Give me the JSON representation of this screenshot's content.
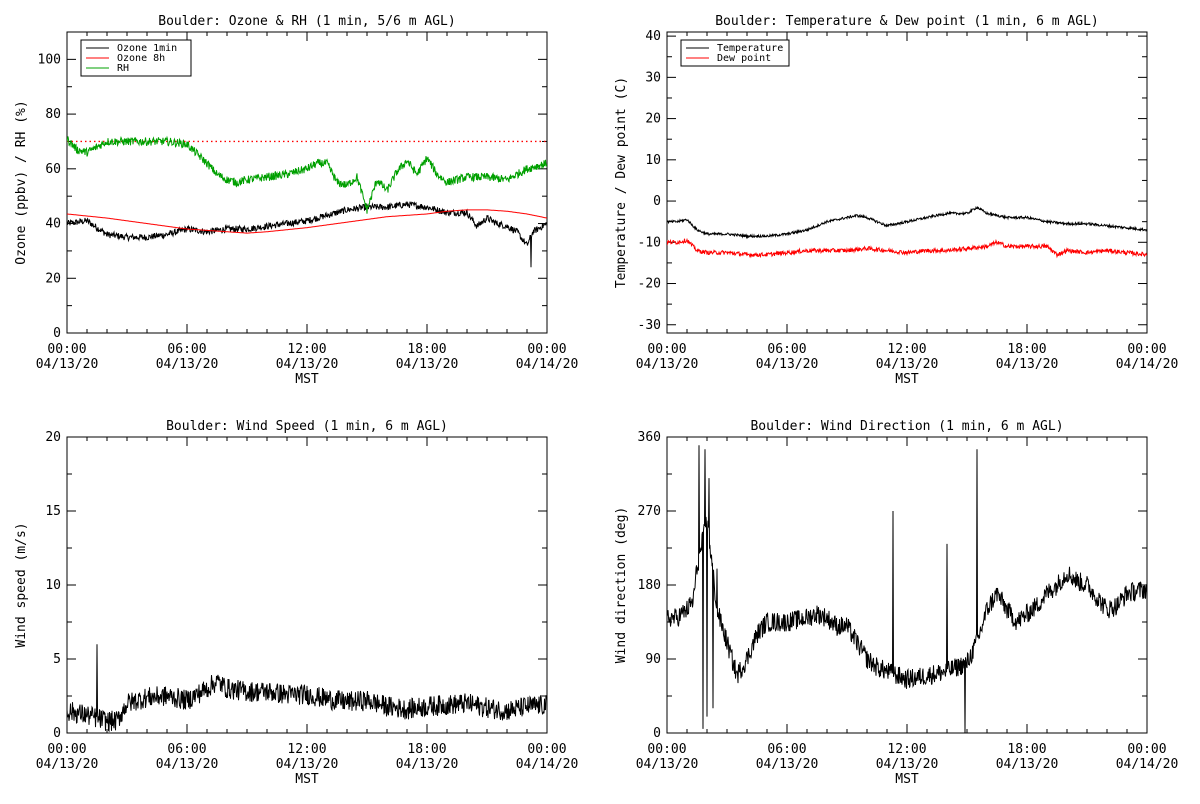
{
  "colors": {
    "black": "#000000",
    "red": "#ff0000",
    "green": "#00a000"
  },
  "time_axis": {
    "ticks": [
      0,
      6,
      12,
      18,
      24
    ],
    "tick_labels": [
      [
        "00:00",
        "04/13/20"
      ],
      [
        "06:00",
        "04/13/20"
      ],
      [
        "12:00",
        "04/13/20"
      ],
      [
        "18:00",
        "04/13/20"
      ],
      [
        "00:00",
        "04/14/20"
      ]
    ],
    "xlabel": "MST",
    "xlim_hours": [
      0,
      24
    ]
  },
  "chart_data": [
    {
      "id": "ozone_rh",
      "type": "line",
      "title": "Boulder: Ozone & RH (1 min, 5/6 m AGL)",
      "ylabel": "Ozone (ppbv) / RH (%)",
      "xlabel": "MST",
      "ylim": [
        0,
        110
      ],
      "yticks": [
        0,
        20,
        40,
        60,
        80,
        100
      ],
      "legend": {
        "placement": "top-left",
        "entries": [
          {
            "label": "Ozone 1min",
            "color": "#000000"
          },
          {
            "label": "Ozone 8h",
            "color": "#ff0000"
          },
          {
            "label": "RH",
            "color": "#00a000"
          }
        ]
      },
      "reference_line": {
        "y": 70,
        "color": "#ff0000",
        "style": "dotted"
      },
      "series": [
        {
          "name": "Ozone 1min",
          "color": "#000000",
          "noise": 1.2,
          "spikes": [
            [
              23.2,
              24
            ]
          ],
          "x": [
            0,
            1,
            2,
            3,
            4,
            5,
            6,
            7,
            8,
            9,
            10,
            11,
            12,
            13,
            14,
            15,
            16,
            17,
            18,
            19,
            20,
            20.5,
            21,
            21.5,
            22,
            22.5,
            23,
            23.3,
            24
          ],
          "y": [
            40,
            41,
            36,
            35,
            35,
            36,
            38,
            37,
            38,
            38,
            39,
            40,
            41,
            43,
            45,
            46,
            46,
            47,
            46,
            44,
            44,
            39,
            42,
            40,
            39,
            37,
            32,
            37,
            40
          ]
        },
        {
          "name": "Ozone 8h",
          "color": "#ff0000",
          "noise": 0,
          "x": [
            0,
            2,
            4,
            6,
            8,
            9,
            10,
            12,
            14,
            16,
            18,
            19,
            20,
            21,
            22,
            23,
            24
          ],
          "y": [
            43.5,
            42,
            40,
            38,
            37,
            36.5,
            37,
            38.5,
            40.5,
            42.5,
            43.5,
            44.5,
            45,
            45,
            44.5,
            43.5,
            42
          ]
        },
        {
          "name": "RH",
          "color": "#00a000",
          "noise": 1.5,
          "x": [
            0,
            0.5,
            1,
            1.5,
            2,
            3,
            4,
            5,
            6,
            7,
            7.5,
            8,
            8.5,
            9,
            10,
            11,
            12,
            12.5,
            13,
            13.5,
            14,
            14.5,
            15,
            15.5,
            16,
            16.5,
            17,
            17.5,
            18,
            18.5,
            19,
            20,
            21,
            22,
            23,
            24
          ],
          "y": [
            71,
            67,
            66,
            68,
            70,
            70,
            70,
            70,
            69,
            62,
            58,
            56,
            55,
            56,
            57,
            58,
            60,
            62,
            62,
            55,
            54,
            57,
            45,
            56,
            52,
            59,
            63,
            58,
            64,
            58,
            55,
            57,
            57,
            56,
            60,
            62
          ]
        }
      ]
    },
    {
      "id": "temp_dew",
      "type": "line",
      "title": "Boulder: Temperature & Dew point (1 min, 6 m AGL)",
      "ylabel": "Temperature / Dew point (C)",
      "xlabel": "MST",
      "ylim": [
        -32,
        41
      ],
      "yticks": [
        -30,
        -20,
        -10,
        0,
        10,
        20,
        30,
        40
      ],
      "legend": {
        "placement": "top-left",
        "entries": [
          {
            "label": "Temperature",
            "color": "#000000"
          },
          {
            "label": "Dew point",
            "color": "#ff0000"
          }
        ]
      },
      "series": [
        {
          "name": "Temperature",
          "color": "#000000",
          "noise": 0.3,
          "x": [
            0,
            0.5,
            1,
            1.5,
            2,
            3,
            4,
            5,
            6,
            7,
            8,
            9,
            9.5,
            10,
            10.5,
            11,
            12,
            13,
            14,
            15,
            15.5,
            16,
            17,
            18,
            19,
            20,
            21,
            22,
            23,
            24
          ],
          "y": [
            -5,
            -5,
            -4.5,
            -7,
            -8,
            -8,
            -8.5,
            -8.5,
            -8,
            -7,
            -5,
            -4,
            -3.5,
            -4,
            -5,
            -6,
            -5,
            -4,
            -3,
            -3,
            -1.5,
            -3,
            -4,
            -4,
            -5,
            -5.5,
            -5.5,
            -6,
            -6.5,
            -7
          ]
        },
        {
          "name": "Dew point",
          "color": "#ff0000",
          "noise": 0.5,
          "x": [
            0,
            0.5,
            1,
            1.5,
            2,
            3,
            4,
            5,
            6,
            7,
            8,
            9,
            10,
            11,
            12,
            13,
            14,
            15,
            16,
            16.5,
            17,
            18,
            19,
            19.5,
            20,
            21,
            22,
            23,
            24
          ],
          "y": [
            -10,
            -10,
            -9.5,
            -12,
            -12.5,
            -12.5,
            -13,
            -13,
            -12.5,
            -12,
            -12,
            -12,
            -11.5,
            -12,
            -12.5,
            -12,
            -12,
            -11.5,
            -11,
            -10,
            -11,
            -11,
            -11,
            -13,
            -12,
            -12.5,
            -12,
            -12.5,
            -13
          ]
        }
      ]
    },
    {
      "id": "wind_speed",
      "type": "line",
      "title": "Boulder: Wind Speed (1 min, 6 m AGL)",
      "ylabel": "Wind speed (m/s)",
      "xlabel": "MST",
      "ylim": [
        0,
        20
      ],
      "yticks": [
        0,
        5,
        10,
        15,
        20
      ],
      "series": [
        {
          "name": "Wind speed",
          "color": "#000000",
          "noise": 0.7,
          "spikes": [
            [
              1.5,
              6
            ]
          ],
          "x": [
            0,
            1,
            1.5,
            2,
            2.5,
            3,
            4,
            5,
            6,
            7,
            7.5,
            8,
            9,
            10,
            11,
            12,
            13,
            14,
            15,
            16,
            17,
            18,
            19,
            20,
            21,
            22,
            23,
            24
          ],
          "y": [
            1.5,
            1.2,
            1.0,
            0.8,
            0.8,
            2.0,
            2.4,
            2.5,
            2.2,
            3.0,
            3.5,
            3.0,
            2.8,
            2.8,
            2.6,
            2.6,
            2.3,
            2.1,
            2.2,
            1.8,
            1.6,
            1.8,
            1.9,
            2.0,
            1.7,
            1.5,
            1.8,
            1.9
          ]
        }
      ]
    },
    {
      "id": "wind_dir",
      "type": "line",
      "title": "Boulder: Wind Direction (1 min, 6 m AGL)",
      "ylabel": "Wind direction (deg)",
      "xlabel": "MST",
      "ylim": [
        0,
        360
      ],
      "yticks": [
        0,
        90,
        180,
        270,
        360
      ],
      "series": [
        {
          "name": "Wind direction",
          "color": "#000000",
          "noise": 12,
          "spikes": [
            [
              1.6,
              350
            ],
            [
              1.8,
              5
            ],
            [
              1.9,
              345
            ],
            [
              2.0,
              20
            ],
            [
              2.1,
              310
            ],
            [
              2.3,
              30
            ],
            [
              2.5,
              200
            ],
            [
              11.3,
              270
            ],
            [
              14.0,
              230
            ],
            [
              14.9,
              0
            ],
            [
              15.5,
              345
            ]
          ],
          "x": [
            0,
            0.5,
            1,
            1.3,
            1.5,
            2.0,
            2.5,
            3,
            3.5,
            4,
            4.5,
            5,
            6,
            7,
            7.5,
            8,
            8.5,
            9,
            10,
            10.5,
            11,
            12,
            13,
            14,
            15,
            15.5,
            16,
            16.5,
            17,
            17.5,
            18,
            18.5,
            19,
            19.5,
            20,
            20.5,
            21,
            21.5,
            22,
            22.5,
            23,
            24
          ],
          "y": [
            140,
            140,
            150,
            160,
            200,
            260,
            150,
            110,
            70,
            90,
            120,
            135,
            135,
            140,
            145,
            140,
            130,
            130,
            90,
            80,
            75,
            65,
            70,
            75,
            85,
            110,
            150,
            170,
            150,
            135,
            145,
            155,
            170,
            180,
            195,
            185,
            180,
            165,
            150,
            155,
            170,
            175
          ]
        }
      ]
    }
  ]
}
